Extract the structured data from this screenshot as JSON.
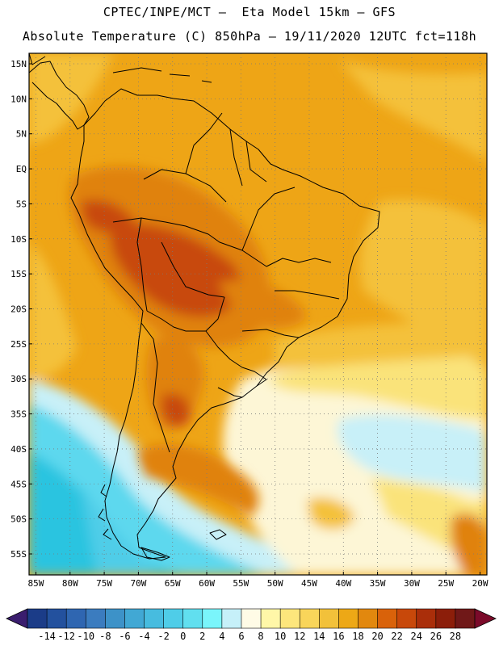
{
  "title": {
    "line1": "CPTEC/INPE/MCT –  Eta Model 15km – GFS",
    "line2": "Absolute Temperature (C) 850hPa – 19/11/2020 12UTC fct=118h"
  },
  "map": {
    "lat_labels": [
      "15N",
      "10N",
      "5N",
      "EQ",
      "5S",
      "10S",
      "15S",
      "20S",
      "25S",
      "30S",
      "35S",
      "40S",
      "45S",
      "50S",
      "55S"
    ],
    "lat_values": [
      15,
      10,
      5,
      0,
      -5,
      -10,
      -15,
      -20,
      -25,
      -30,
      -35,
      -40,
      -45,
      -50,
      -55
    ],
    "lon_labels": [
      "85W",
      "80W",
      "75W",
      "70W",
      "65W",
      "60W",
      "55W",
      "50W",
      "45W",
      "40W",
      "35W",
      "30W",
      "25W",
      "20W"
    ],
    "lon_values": [
      -85,
      -80,
      -75,
      -70,
      -65,
      -60,
      -55,
      -50,
      -45,
      -40,
      -35,
      -30,
      -25,
      -20
    ],
    "lon_range": [
      -86,
      -19
    ],
    "lat_range": [
      -58,
      16.5
    ],
    "colors": {
      "hot_core": "#c84a0c",
      "warm_orange": "#e0820e",
      "orange": "#eea516",
      "yellow_orange": "#f4c13a",
      "yellow": "#fae37a",
      "cream": "#fdf6d6",
      "pale_cyan": "#c8f0f8",
      "cyan": "#5dd8ee",
      "deep_cyan": "#2cc4e0",
      "coast": "#000000",
      "grid": "#7a7a7a"
    }
  },
  "colorbar": {
    "labels": [
      "-14",
      "-12",
      "-10",
      "-8",
      "-6",
      "-4",
      "-2",
      "0",
      "2",
      "4",
      "6",
      "8",
      "10",
      "12",
      "14",
      "16",
      "18",
      "20",
      "22",
      "24",
      "26",
      "28"
    ],
    "colors": [
      "#1b3c88",
      "#23519e",
      "#2f66b1",
      "#3b7cbf",
      "#3d92c8",
      "#41a8d4",
      "#47bcdf",
      "#4fcde8",
      "#61dfef",
      "#7af5fb",
      "#c6f0f9",
      "#fffbe6",
      "#fff7a8",
      "#fde67c",
      "#f9d55a",
      "#f2c13a",
      "#eda816",
      "#e2880e",
      "#d9620a",
      "#c8480a",
      "#aa2e0a",
      "#8c1e0a",
      "#701818"
    ],
    "left_arrow_color": "#3a1d6e",
    "right_arrow_color": "#7b0a2a"
  }
}
